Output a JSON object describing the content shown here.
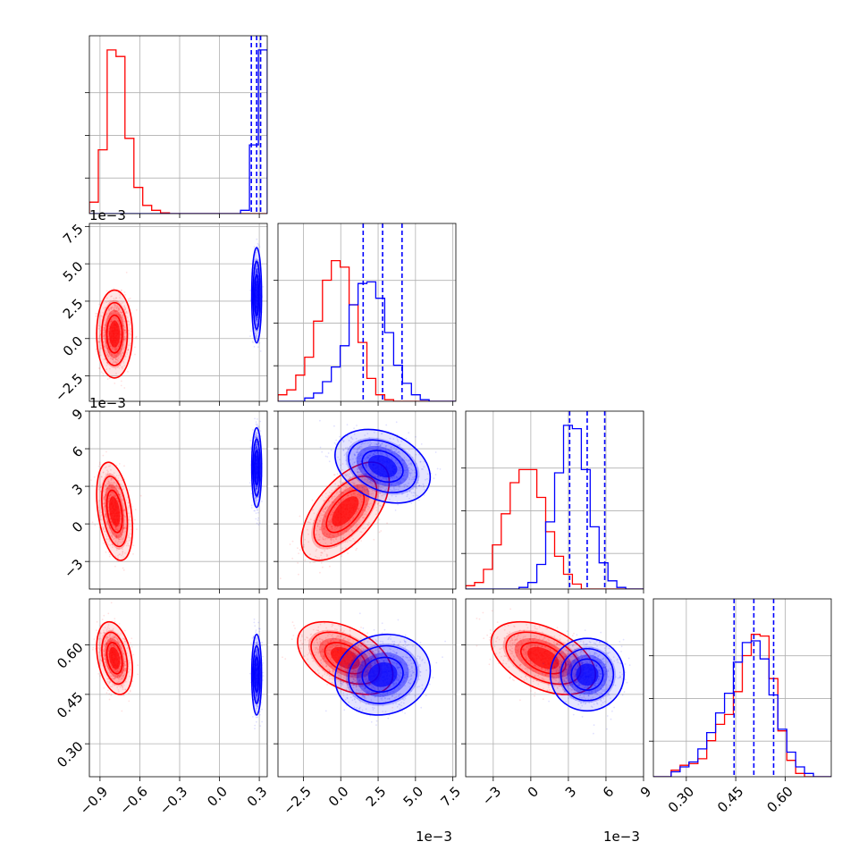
{
  "chart_data": {
    "type": "corner",
    "title": "",
    "series": [
      {
        "color": "#ff0000",
        "medians": [
          -0.79,
          0.0003,
          0.001,
          0.56
        ]
      },
      {
        "color": "#0000ff",
        "medians": [
          0.28,
          0.0028,
          0.0045,
          0.51
        ],
        "quantile_lines": [
          [
            0.24,
            0.28,
            0.31
          ],
          [
            0.0015,
            0.0028,
            0.0041
          ],
          [
            0.0031,
            0.0045,
            0.0059
          ],
          [
            0.445,
            0.505,
            0.565
          ]
        ]
      }
    ],
    "params": [
      {
        "range": [
          -0.98,
          0.36
        ],
        "ticks": [
          -0.9,
          -0.6,
          -0.3,
          0.0,
          0.3
        ],
        "tick_labels": [
          "−0.9",
          "−0.6",
          "−0.3",
          "0.0",
          "0.3"
        ],
        "offset": ""
      },
      {
        "range": [
          -0.0042,
          0.0077
        ],
        "ticks": [
          -0.0025,
          0.0,
          0.0025,
          0.005,
          0.0075
        ],
        "tick_labels": [
          "−2.5",
          "0.0",
          "2.5",
          "5.0",
          "7.5"
        ],
        "offset": "1e−3"
      },
      {
        "range": [
          -0.0052,
          0.009
        ],
        "ticks": [
          -0.003,
          0.0,
          0.003,
          0.006,
          0.009
        ],
        "tick_labels": [
          "−3",
          "0",
          "3",
          "6",
          "9"
        ],
        "offset": "1e−3"
      },
      {
        "range": [
          0.2,
          0.74
        ],
        "ticks": [
          0.3,
          0.45,
          0.6
        ],
        "tick_labels": [
          "0.30",
          "0.45",
          "0.60"
        ],
        "offset": ""
      }
    ],
    "histograms": [
      {
        "red": [
          0.07,
          0.39,
          1.0,
          0.96,
          0.46,
          0.16,
          0.05,
          0.02,
          0.005,
          0,
          0,
          0,
          0,
          0,
          0,
          0,
          0,
          0,
          0,
          0
        ],
        "blue": [
          0,
          0,
          0,
          0,
          0,
          0,
          0,
          0,
          0,
          0,
          0,
          0,
          0,
          0,
          0,
          0,
          0,
          0.02,
          0.42,
          1.0
        ]
      },
      {
        "red": [
          0.04,
          0.07,
          0.16,
          0.27,
          0.49,
          0.74,
          0.86,
          0.82,
          0.59,
          0.36,
          0.14,
          0.04,
          0.01,
          0,
          0,
          0,
          0,
          0,
          0,
          0
        ],
        "blue": [
          0,
          0,
          0,
          0.02,
          0.05,
          0.12,
          0.21,
          0.34,
          0.59,
          0.72,
          0.73,
          0.63,
          0.42,
          0.22,
          0.11,
          0.04,
          0.01,
          0,
          0,
          0
        ]
      },
      {
        "red": [
          0.02,
          0.04,
          0.12,
          0.27,
          0.46,
          0.65,
          0.73,
          0.73,
          0.56,
          0.35,
          0.2,
          0.09,
          0.03,
          0,
          0,
          0,
          0,
          0,
          0,
          0
        ],
        "blue": [
          0,
          0,
          0,
          0,
          0,
          0,
          0.01,
          0.04,
          0.15,
          0.41,
          0.71,
          1.0,
          0.98,
          0.73,
          0.38,
          0.16,
          0.05,
          0.01,
          0,
          0
        ]
      },
      {
        "red": [
          0,
          0,
          0.04,
          0.07,
          0.08,
          0.11,
          0.22,
          0.32,
          0.38,
          0.52,
          0.74,
          0.87,
          0.86,
          0.6,
          0.28,
          0.1,
          0.02,
          0,
          0,
          0
        ],
        "blue": [
          0,
          0,
          0.03,
          0.06,
          0.09,
          0.17,
          0.27,
          0.39,
          0.51,
          0.7,
          0.82,
          0.83,
          0.72,
          0.5,
          0.29,
          0.15,
          0.06,
          0.02,
          0,
          0
        ]
      }
    ],
    "clouds": [
      {
        "row": 1,
        "col": 0,
        "red": {
          "center": [
            -0.79,
            0.0003
          ],
          "sd": [
            0.055,
            0.0012
          ],
          "corr": 0.0
        },
        "blue": {
          "center": [
            0.28,
            0.0029
          ],
          "sd": [
            0.015,
            0.0013
          ],
          "corr": 0.0
        }
      },
      {
        "row": 2,
        "col": 0,
        "red": {
          "center": [
            -0.79,
            0.001
          ],
          "sd": [
            0.055,
            0.0016
          ],
          "corr": -0.35
        },
        "blue": {
          "center": [
            0.28,
            0.0045
          ],
          "sd": [
            0.015,
            0.0013
          ],
          "corr": 0.0
        }
      },
      {
        "row": 2,
        "col": 1,
        "red": {
          "center": [
            0.0003,
            0.001
          ],
          "sd": [
            0.0012,
            0.0016
          ],
          "corr": 0.6
        },
        "blue": {
          "center": [
            0.0028,
            0.0046
          ],
          "sd": [
            0.0013,
            0.0012
          ],
          "corr": -0.3
        }
      },
      {
        "row": 3,
        "col": 0,
        "red": {
          "center": [
            -0.79,
            0.56
          ],
          "sd": [
            0.055,
            0.045
          ],
          "corr": -0.3
        },
        "blue": {
          "center": [
            0.28,
            0.51
          ],
          "sd": [
            0.015,
            0.05
          ],
          "corr": 0.0
        }
      },
      {
        "row": 3,
        "col": 1,
        "red": {
          "center": [
            0.0003,
            0.56
          ],
          "sd": [
            0.0013,
            0.045
          ],
          "corr": -0.45
        },
        "blue": {
          "center": [
            0.0028,
            0.51
          ],
          "sd": [
            0.0013,
            0.05
          ],
          "corr": 0.1
        }
      },
      {
        "row": 3,
        "col": 2,
        "red": {
          "center": [
            0.001,
            0.56
          ],
          "sd": [
            0.0017,
            0.045
          ],
          "corr": -0.45
        },
        "blue": {
          "center": [
            0.0045,
            0.51
          ],
          "sd": [
            0.0012,
            0.045
          ],
          "corr": 0.0
        }
      }
    ]
  }
}
